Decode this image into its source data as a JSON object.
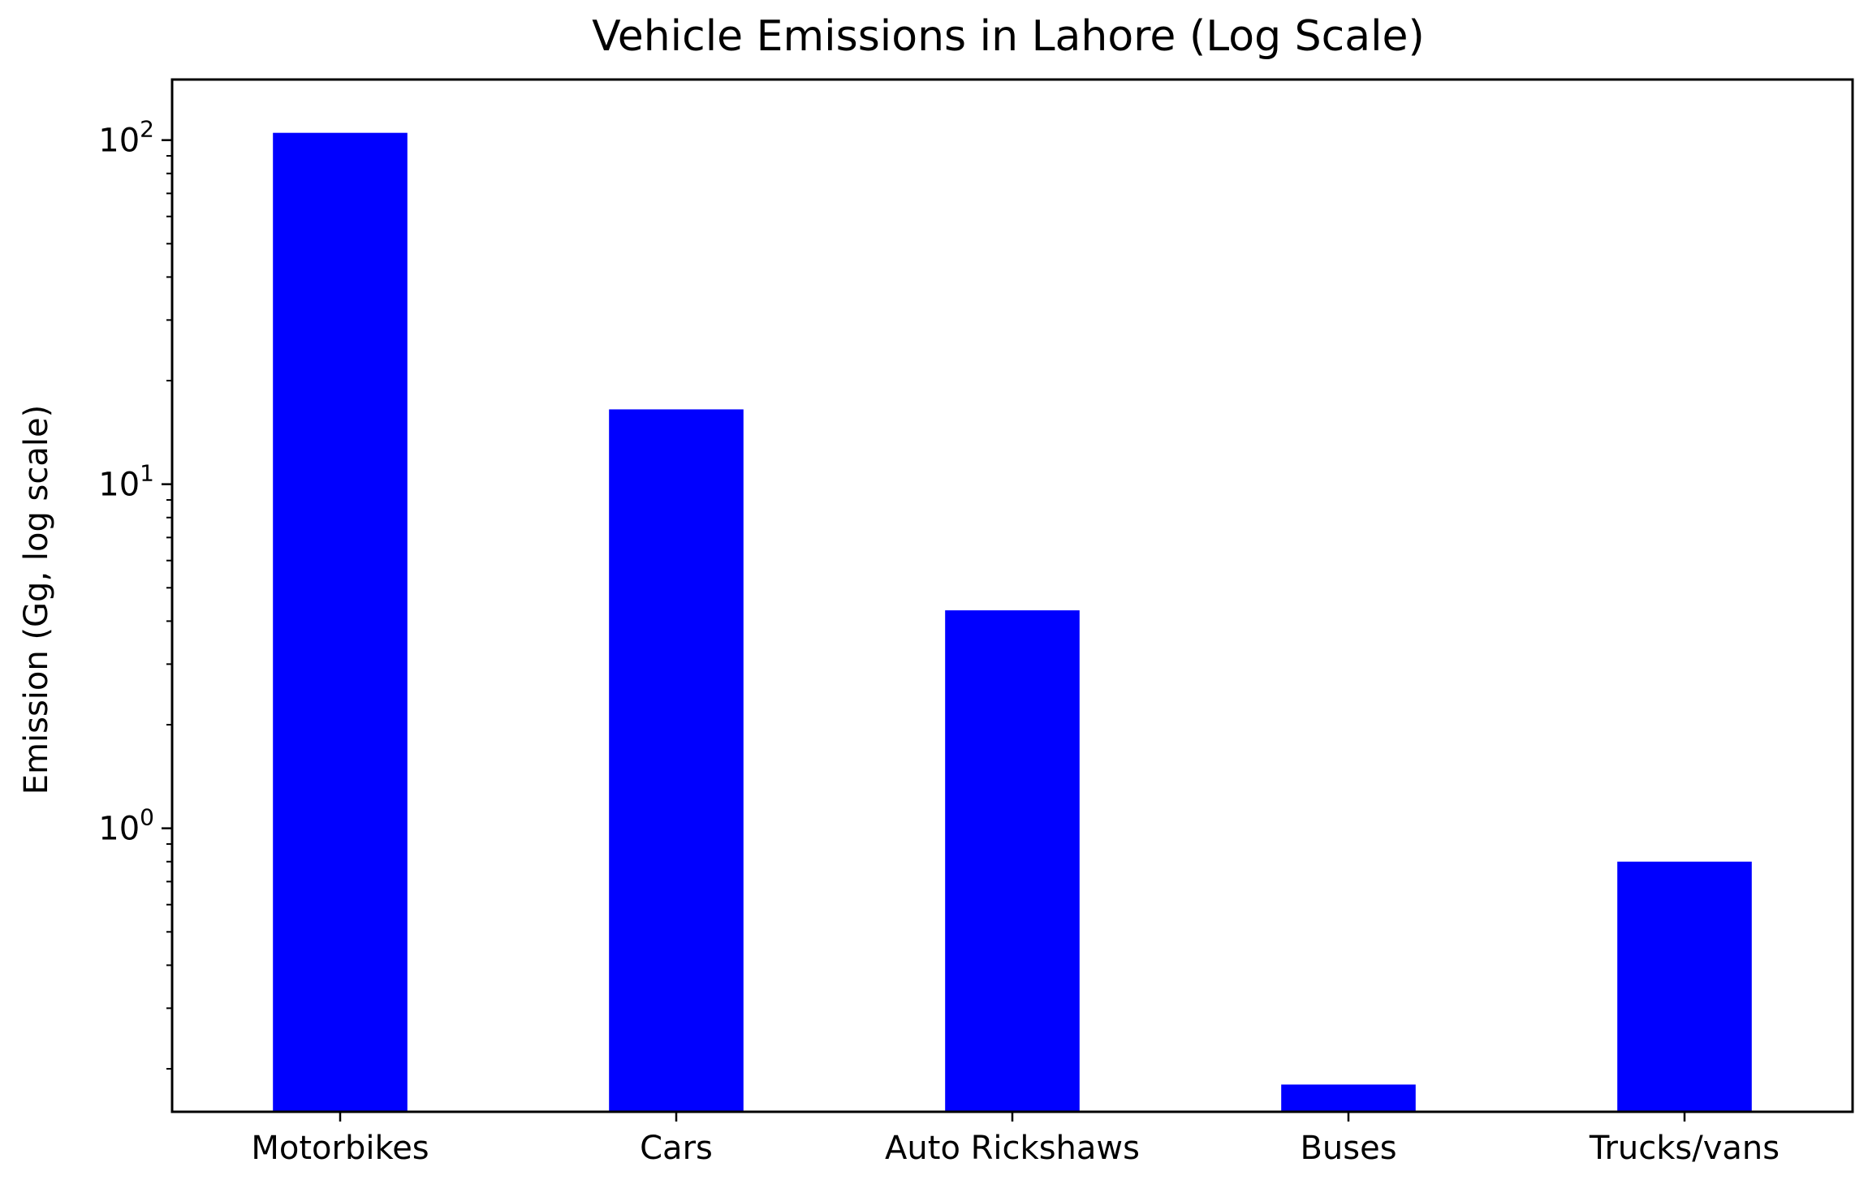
{
  "chart_data": {
    "type": "bar",
    "title": "Vehicle Emissions in Lahore (Log Scale)",
    "xlabel": "",
    "ylabel": "Emission (Gg, log scale)",
    "yscale": "log",
    "ylim": [
      0.15,
      150
    ],
    "y_major_ticks": [
      1,
      10,
      100
    ],
    "y_tick_labels": [
      {
        "base": "10",
        "exp": "0"
      },
      {
        "base": "10",
        "exp": "1"
      },
      {
        "base": "10",
        "exp": "2"
      }
    ],
    "categories": [
      "Motorbikes",
      "Cars",
      "Auto Rickshaws",
      "Buses",
      "Trucks/vans"
    ],
    "values": [
      105,
      16.5,
      4.3,
      0.18,
      0.8
    ],
    "bar_color": "#0000ff",
    "grid": false,
    "legend": "none"
  }
}
